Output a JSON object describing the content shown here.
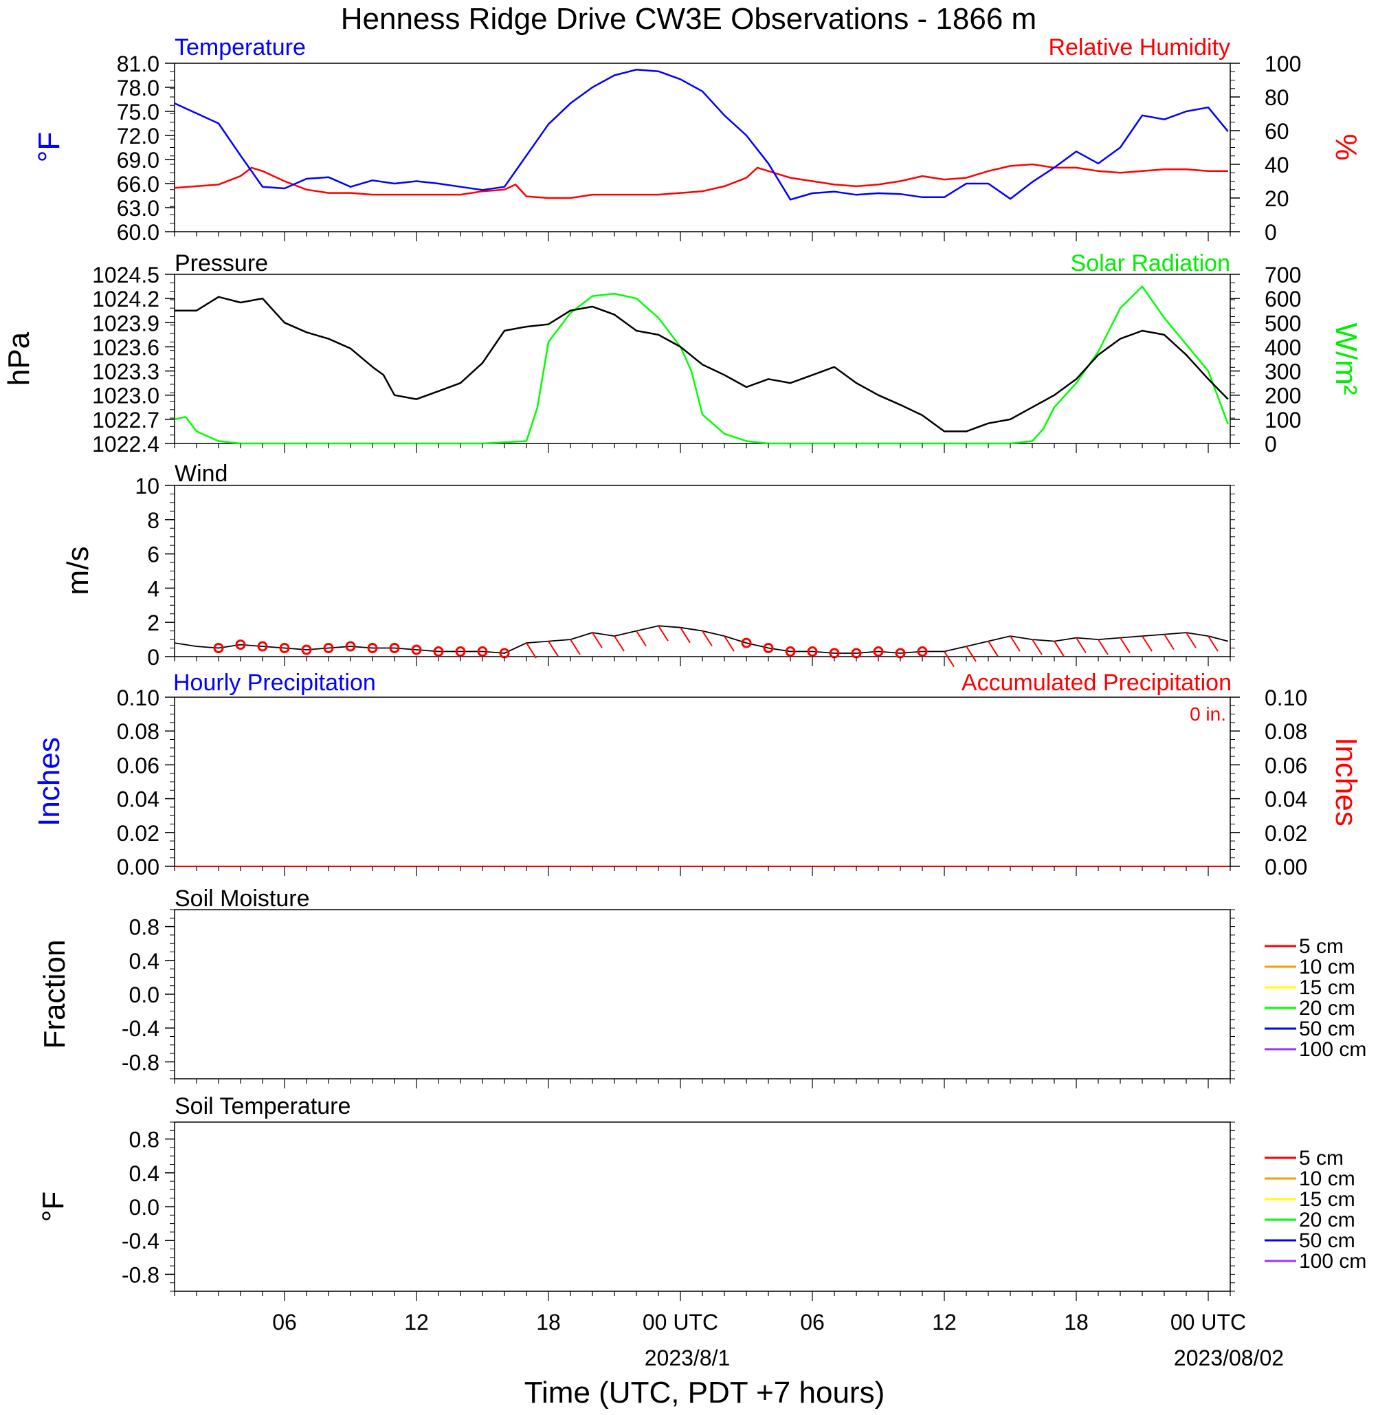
{
  "title": "Henness Ridge Drive CW3E Observations - 1866 m",
  "x_axis": {
    "label": "Time (UTC, PDT +7 hours)",
    "ticks": [
      "06",
      "12",
      "18",
      "00 UTC",
      "06",
      "12",
      "18",
      "00 UTC"
    ],
    "date_labels": [
      "2023/8/1",
      "2023/08/02"
    ]
  },
  "colors": {
    "temperature": "#0000ff",
    "humidity": "#ff0000",
    "pressure": "#000000",
    "solar": "#00ff00",
    "wind": "#000000",
    "barbs": "#ff0000",
    "hourly_precip": "#0000ff",
    "accum_precip": "#ff0000"
  },
  "panels": {
    "temp": {
      "left_label": "Temperature",
      "right_label": "Relative Humidity",
      "left_unit": "°F",
      "right_unit": "%",
      "left_ticks": [
        "81.0",
        "78.0",
        "75.0",
        "72.0",
        "69.0",
        "66.0",
        "63.0",
        "60.0"
      ],
      "right_ticks": [
        "100",
        "80",
        "60",
        "40",
        "20",
        "0"
      ]
    },
    "pressure": {
      "left_label": "Pressure",
      "right_label": "Solar Radiation",
      "left_unit": "hPa",
      "right_unit": "W/m²",
      "left_ticks": [
        "1024.5",
        "1024.2",
        "1023.9",
        "1023.6",
        "1023.3",
        "1023.0",
        "1022.7",
        "1022.4"
      ],
      "right_ticks": [
        "700",
        "600",
        "500",
        "400",
        "300",
        "200",
        "100",
        "0"
      ]
    },
    "wind": {
      "left_label": "Wind",
      "left_unit": "m/s",
      "left_ticks": [
        "10",
        "8",
        "6",
        "4",
        "2",
        "0"
      ]
    },
    "precip": {
      "left_label": "Hourly Precipitation",
      "right_label": "Accumulated Precipitation",
      "total": "0 in.",
      "left_unit": "Inches",
      "right_unit": "Inches",
      "left_ticks": [
        "0.10",
        "0.08",
        "0.06",
        "0.04",
        "0.02",
        "0.00"
      ],
      "right_ticks": [
        "0.10",
        "0.08",
        "0.06",
        "0.04",
        "0.02",
        "0.00"
      ]
    },
    "soil_moisture": {
      "left_label": "Soil Moisture",
      "left_unit": "Fraction",
      "left_ticks": [
        "0.8",
        "0.4",
        "0.0",
        "-0.4",
        "-0.8"
      ],
      "legend": [
        {
          "label": "5 cm",
          "color": "#ff0000"
        },
        {
          "label": "10 cm",
          "color": "#ff9900"
        },
        {
          "label": "15 cm",
          "color": "#ffff00"
        },
        {
          "label": "20 cm",
          "color": "#00ff00"
        },
        {
          "label": "50 cm",
          "color": "#0000ff"
        },
        {
          "label": "100 cm",
          "color": "#9933ff"
        }
      ]
    },
    "soil_temp": {
      "left_label": "Soil Temperature",
      "left_unit": "°F",
      "left_ticks": [
        "0.8",
        "0.4",
        "0.0",
        "-0.4",
        "-0.8"
      ],
      "legend": [
        {
          "label": "5 cm",
          "color": "#ff0000"
        },
        {
          "label": "10 cm",
          "color": "#ff9900"
        },
        {
          "label": "15 cm",
          "color": "#ffff00"
        },
        {
          "label": "20 cm",
          "color": "#00ff00"
        },
        {
          "label": "50 cm",
          "color": "#0000ff"
        },
        {
          "label": "100 cm",
          "color": "#9933ff"
        }
      ]
    }
  },
  "chart_data": [
    {
      "type": "line",
      "panel": "temp",
      "x_unit": "hours from 2023-07-31 01 UTC",
      "ylim_left": [
        60,
        81
      ],
      "ylim_right": [
        0,
        100
      ],
      "series": [
        {
          "name": "Temperature",
          "axis": "left",
          "x": [
            0,
            2,
            3,
            4,
            5,
            6,
            7,
            8,
            9,
            10,
            11,
            12,
            13,
            14,
            15,
            16,
            17,
            18,
            19,
            20,
            21,
            22,
            23,
            24,
            25,
            26,
            27,
            28,
            29,
            30,
            31,
            32,
            33,
            34,
            35,
            36,
            37,
            38,
            39,
            40,
            41,
            42,
            43,
            44,
            45,
            46,
            47,
            47.9
          ],
          "y": [
            76.0,
            73.5,
            69.5,
            65.6,
            65.4,
            66.6,
            66.8,
            65.6,
            66.4,
            66.0,
            66.3,
            66.0,
            65.6,
            65.2,
            65.6,
            69.5,
            73.4,
            76.0,
            78.0,
            79.5,
            80.2,
            80.0,
            79.0,
            77.5,
            74.5,
            72.0,
            68.5,
            64.0,
            64.8,
            65.0,
            64.6,
            64.8,
            64.7,
            64.3,
            64.3,
            66.0,
            66.0,
            64.1,
            66.2,
            68.0,
            70.0,
            68.5,
            70.5,
            74.5,
            74.0,
            75.0,
            75.5,
            72.5
          ]
        },
        {
          "name": "Relative Humidity",
          "axis": "right",
          "x": [
            0,
            2,
            3,
            3.5,
            4,
            5,
            6,
            7,
            8,
            9,
            10,
            11,
            12,
            13,
            14,
            15,
            15.5,
            16,
            17,
            18,
            19,
            20,
            21,
            22,
            23,
            24,
            25,
            26,
            26.5,
            27,
            28,
            29,
            30,
            31,
            32,
            33,
            34,
            35,
            36,
            37,
            38,
            39,
            40,
            41,
            42,
            43,
            44,
            45,
            46,
            47,
            47.9
          ],
          "y": [
            26,
            28,
            33,
            38,
            36,
            30,
            25,
            23,
            23,
            22,
            22,
            22,
            22,
            22,
            24,
            25,
            28,
            21,
            20,
            20,
            22,
            22,
            22,
            22,
            23,
            24,
            27,
            32,
            38,
            36,
            32,
            30,
            28,
            27,
            28,
            30,
            33,
            31,
            32,
            36,
            39,
            40,
            38,
            38,
            36,
            35,
            36,
            37,
            37,
            36,
            36
          ]
        }
      ]
    },
    {
      "type": "line",
      "panel": "pressure",
      "x_unit": "hours from 2023-07-31 01 UTC",
      "ylim_left": [
        1022.4,
        1024.5
      ],
      "ylim_right": [
        0,
        700
      ],
      "series": [
        {
          "name": "Pressure",
          "axis": "left",
          "x": [
            0,
            1,
            2,
            3,
            4,
            5,
            6,
            7,
            8,
            9,
            9.5,
            10,
            11,
            12,
            13,
            14,
            15,
            16,
            17,
            18,
            19,
            20,
            21,
            22,
            23,
            24,
            25,
            26,
            27,
            28,
            29,
            30,
            31,
            32,
            33,
            34,
            35,
            36,
            37,
            38,
            39,
            40,
            41,
            42,
            43,
            44,
            45,
            46,
            47,
            47.9
          ],
          "y": [
            1024.05,
            1024.05,
            1024.22,
            1024.15,
            1024.2,
            1023.9,
            1023.78,
            1023.7,
            1023.58,
            1023.35,
            1023.25,
            1023.0,
            1022.95,
            1023.05,
            1023.15,
            1023.4,
            1023.8,
            1023.85,
            1023.88,
            1024.05,
            1024.1,
            1024.0,
            1023.8,
            1023.75,
            1023.6,
            1023.38,
            1023.25,
            1023.1,
            1023.2,
            1023.15,
            1023.25,
            1023.35,
            1023.15,
            1023.0,
            1022.88,
            1022.75,
            1022.55,
            1022.55,
            1022.65,
            1022.7,
            1022.85,
            1023.0,
            1023.2,
            1023.5,
            1023.7,
            1023.8,
            1023.75,
            1023.5,
            1023.2,
            1022.95
          ]
        },
        {
          "name": "Solar Radiation",
          "axis": "right",
          "x": [
            0,
            0.5,
            1,
            1.5,
            2,
            3,
            4,
            5,
            6,
            7,
            8,
            9,
            10,
            11,
            12,
            13,
            14,
            15,
            16,
            16.5,
            17,
            18,
            19,
            20,
            21,
            22,
            23,
            23.5,
            24,
            25,
            26,
            26.5,
            27,
            28,
            29,
            30,
            31,
            32,
            33,
            34,
            35,
            36,
            37,
            38,
            39,
            39.5,
            40,
            41,
            42,
            43,
            44,
            45,
            46,
            47,
            47.9
          ],
          "y": [
            100,
            110,
            50,
            30,
            10,
            0,
            0,
            0,
            0,
            0,
            0,
            0,
            0,
            0,
            0,
            0,
            0,
            5,
            10,
            150,
            420,
            540,
            610,
            620,
            600,
            520,
            400,
            300,
            120,
            40,
            10,
            5,
            0,
            0,
            0,
            0,
            0,
            0,
            0,
            0,
            0,
            0,
            0,
            0,
            10,
            60,
            150,
            250,
            380,
            560,
            650,
            520,
            410,
            300,
            80
          ]
        }
      ]
    },
    {
      "type": "line",
      "panel": "wind",
      "x_unit": "hours from 2023-07-31 01 UTC",
      "ylim": [
        0,
        10
      ],
      "series": [
        {
          "name": "Wind speed",
          "x": [
            0,
            1,
            2,
            3,
            4,
            5,
            6,
            7,
            8,
            9,
            10,
            11,
            12,
            13,
            14,
            15,
            16,
            17,
            18,
            19,
            20,
            21,
            22,
            23,
            24,
            25,
            26,
            27,
            28,
            29,
            30,
            31,
            32,
            33,
            34,
            35,
            36,
            37,
            38,
            39,
            40,
            41,
            42,
            43,
            44,
            45,
            46,
            47,
            47.9
          ],
          "y": [
            0.8,
            0.6,
            0.5,
            0.7,
            0.6,
            0.5,
            0.4,
            0.5,
            0.6,
            0.5,
            0.5,
            0.4,
            0.3,
            0.3,
            0.3,
            0.2,
            0.8,
            0.9,
            1.0,
            1.4,
            1.2,
            1.5,
            1.8,
            1.7,
            1.5,
            1.2,
            0.8,
            0.5,
            0.3,
            0.3,
            0.2,
            0.2,
            0.3,
            0.2,
            0.3,
            0.3,
            0.6,
            0.9,
            1.2,
            1.0,
            0.9,
            1.1,
            1.0,
            1.1,
            1.2,
            1.3,
            1.4,
            1.2,
            0.9
          ]
        }
      ]
    },
    {
      "type": "line",
      "panel": "precip",
      "ylim": [
        0,
        0.1
      ],
      "series": [
        {
          "name": "Hourly Precipitation",
          "x": [
            0,
            47.9
          ],
          "y": [
            0,
            0
          ]
        },
        {
          "name": "Accumulated Precipitation",
          "x": [
            0,
            47.9
          ],
          "y": [
            0,
            0
          ]
        }
      ]
    }
  ]
}
